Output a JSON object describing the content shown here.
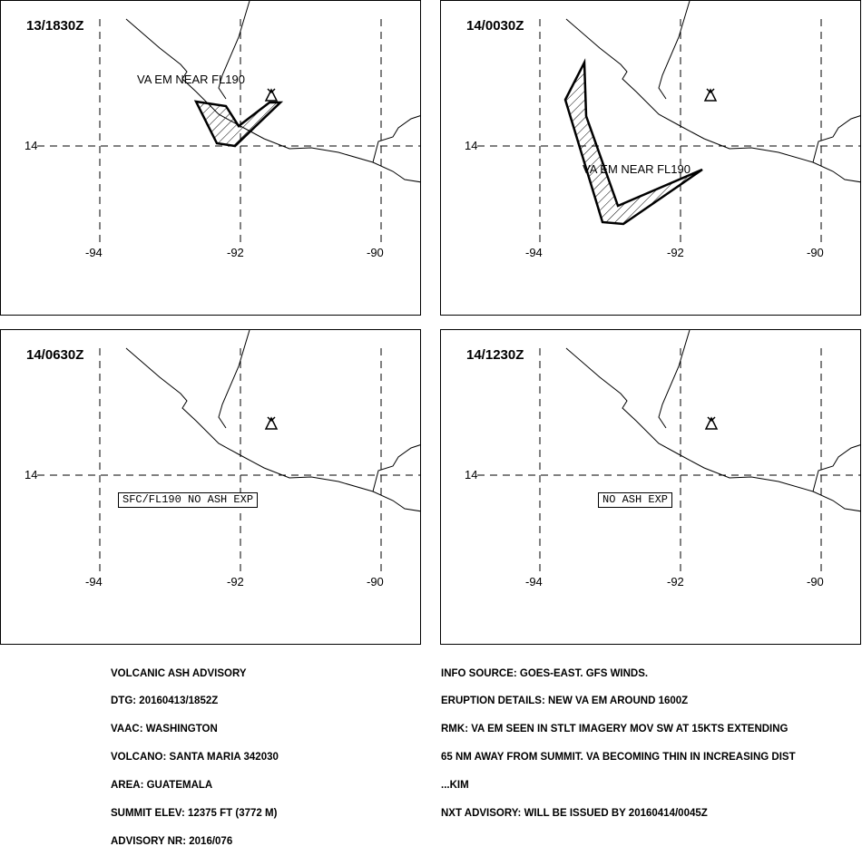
{
  "panels": [
    {
      "time": "13/1830Z",
      "latitude_label": "14",
      "longitude_labels": [
        "-94",
        "-92",
        "-90"
      ],
      "annotation": "VA EM NEAR FL190",
      "no_ash_label": ""
    },
    {
      "time": "14/0030Z",
      "latitude_label": "14",
      "longitude_labels": [
        "-94",
        "-92",
        "-90"
      ],
      "annotation": "VA EM NEAR FL190",
      "no_ash_label": ""
    },
    {
      "time": "14/0630Z",
      "latitude_label": "14",
      "longitude_labels": [
        "-94",
        "-92",
        "-90"
      ],
      "annotation": "",
      "no_ash_label": "SFC/FL190 NO ASH EXP"
    },
    {
      "time": "14/1230Z",
      "latitude_label": "14",
      "longitude_labels": [
        "-94",
        "-92",
        "-90"
      ],
      "annotation": "",
      "no_ash_label": "NO ASH EXP"
    }
  ],
  "advisory_left": [
    "VOLCANIC ASH ADVISORY",
    "DTG: 20160413/1852Z",
    "VAAC: WASHINGTON",
    "VOLCANO: SANTA MARIA 342030",
    "AREA: GUATEMALA",
    "SUMMIT ELEV: 12375 FT (3772 M)",
    "ADVISORY NR: 2016/076"
  ],
  "advisory_right": [
    "INFO SOURCE: GOES-EAST. GFS WINDS.",
    "ERUPTION DETAILS: NEW VA EM AROUND 1600Z",
    "RMK: VA EM SEEN IN STLT IMAGERY MOV SW AT 15KTS EXTENDING",
    "65 NM AWAY FROM SUMMIT. VA BECOMING THIN IN INCREASING DIST",
    "...KIM",
    "NXT ADVISORY: WILL BE ISSUED BY 20160414/0045Z"
  ],
  "icons": {
    "volcano": "volcano-icon"
  }
}
